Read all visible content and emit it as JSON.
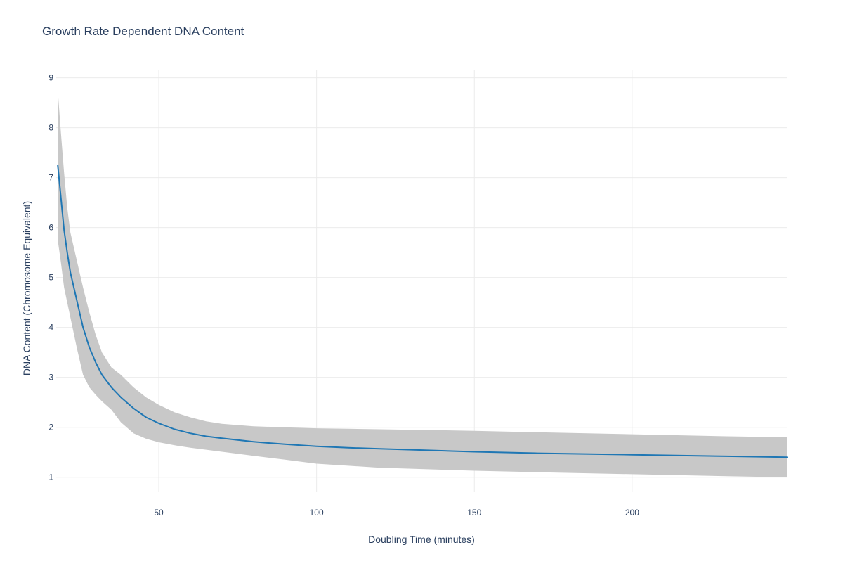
{
  "colors": {
    "line": "#1f77b4",
    "band": "#c8c8c8",
    "grid": "#ebebeb",
    "text": "#2a3f5f",
    "background": "#ffffff"
  },
  "chart_data": {
    "type": "line",
    "title": "Growth Rate Dependent DNA Content",
    "xlabel": "Doubling Time (minutes)",
    "ylabel": "DNA Content (Chromosome Equivalent)",
    "xlim": [
      17.5,
      249
    ],
    "ylim": [
      0.7,
      9.15
    ],
    "grid": true,
    "legend": "none",
    "xticks": [
      50,
      100,
      150,
      200
    ],
    "yticks": [
      1,
      2,
      3,
      4,
      5,
      6,
      7,
      8,
      9
    ],
    "series": [
      {
        "type": "line",
        "x": [
          18,
          19,
          20,
          21,
          22,
          24,
          26,
          28,
          30,
          32,
          35,
          38,
          42,
          46,
          50,
          55,
          60,
          65,
          70,
          80,
          90,
          100,
          110,
          120,
          130,
          150,
          170,
          200,
          230,
          249
        ],
        "values": [
          7.25,
          6.6,
          5.95,
          5.5,
          5.1,
          4.55,
          4.0,
          3.6,
          3.3,
          3.05,
          2.8,
          2.6,
          2.38,
          2.2,
          2.08,
          1.96,
          1.88,
          1.82,
          1.78,
          1.71,
          1.66,
          1.62,
          1.59,
          1.57,
          1.55,
          1.51,
          1.48,
          1.45,
          1.42,
          1.4
        ]
      },
      {
        "type": "band",
        "x": [
          18,
          19,
          20,
          21,
          22,
          24,
          26,
          28,
          30,
          32,
          35,
          38,
          42,
          46,
          50,
          55,
          60,
          65,
          70,
          80,
          90,
          100,
          110,
          120,
          130,
          150,
          170,
          200,
          230,
          249
        ],
        "upper": [
          8.75,
          7.9,
          7.1,
          6.4,
          5.9,
          5.35,
          4.8,
          4.3,
          3.85,
          3.5,
          3.2,
          3.05,
          2.8,
          2.6,
          2.45,
          2.3,
          2.2,
          2.12,
          2.07,
          2.02,
          2.0,
          1.98,
          1.97,
          1.96,
          1.95,
          1.93,
          1.9,
          1.86,
          1.82,
          1.8
        ],
        "lower": [
          5.75,
          5.3,
          4.8,
          4.5,
          4.2,
          3.6,
          3.05,
          2.8,
          2.65,
          2.52,
          2.35,
          2.1,
          1.88,
          1.77,
          1.7,
          1.64,
          1.59,
          1.55,
          1.51,
          1.43,
          1.35,
          1.27,
          1.23,
          1.19,
          1.17,
          1.13,
          1.1,
          1.06,
          1.02,
          1.0
        ]
      }
    ]
  }
}
